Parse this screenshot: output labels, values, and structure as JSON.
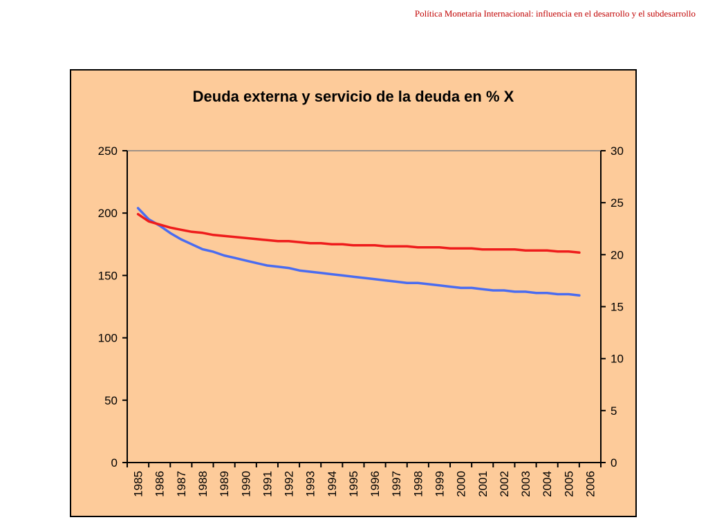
{
  "header": {
    "text": "Política Monetaria Internacional: influencia en el desarrollo y el subdesarrollo"
  },
  "colors": {
    "panel_background": "#fdcb9a",
    "series_1": "#4a6cf0",
    "series_2": "#ee1c1c",
    "top_gridline": "#808080"
  },
  "chart_data": {
    "type": "line",
    "title": "Deuda externa y servicio de la deuda en % X",
    "xlabel": "",
    "ylabel": "",
    "y2label": "",
    "categories": [
      "1985",
      "1986",
      "1987",
      "1988",
      "1989",
      "1990",
      "1991",
      "1992",
      "1993",
      "1994",
      "1995",
      "1996",
      "1997",
      "1998",
      "1999",
      "2000",
      "2001",
      "2002",
      "2003",
      "2004",
      "2005",
      "2006"
    ],
    "ylim": [
      0,
      250
    ],
    "yticks": [
      0,
      50,
      100,
      150,
      200,
      250
    ],
    "y2lim": [
      0,
      30
    ],
    "y2ticks": [
      0,
      5,
      10,
      15,
      20,
      25,
      30
    ],
    "grid": false,
    "legend": "none",
    "series": [
      {
        "axis": "left",
        "color": "#4a6cf0",
        "x": [
          1985.5,
          1986.0,
          1986.5,
          1987.0,
          1987.5,
          1988.0,
          1988.5,
          1989.0,
          1989.5,
          1990.0,
          1990.5,
          1991.0,
          1991.5,
          1992.0,
          1992.5,
          1993.0,
          1993.5,
          1994.0,
          1994.5,
          1995.0,
          1995.5,
          1996.0,
          1996.5,
          1997.0,
          1997.5,
          1998.0,
          1998.5,
          1999.0,
          1999.5,
          2000.0,
          2000.5,
          2001.0,
          2001.5,
          2002.0,
          2002.5,
          2003.0,
          2003.5,
          2004.0,
          2004.5,
          2005.0,
          2005.5,
          2006.0
        ],
        "values": [
          204,
          195,
          190,
          184,
          179,
          175,
          171,
          169,
          166,
          164,
          162,
          160,
          158,
          157,
          156,
          154,
          153,
          152,
          151,
          150,
          149,
          148,
          147,
          146,
          145,
          144,
          144,
          143,
          142,
          141,
          140,
          140,
          139,
          138,
          138,
          137,
          137,
          136,
          136,
          135,
          135,
          134
        ]
      },
      {
        "axis": "right",
        "color": "#ee1c1c",
        "x": [
          1985.5,
          1986.0,
          1986.5,
          1987.0,
          1987.5,
          1988.0,
          1988.5,
          1989.0,
          1989.5,
          1990.0,
          1990.5,
          1991.0,
          1991.5,
          1992.0,
          1992.5,
          1993.0,
          1993.5,
          1994.0,
          1994.5,
          1995.0,
          1995.5,
          1996.0,
          1996.5,
          1997.0,
          1997.5,
          1998.0,
          1998.5,
          1999.0,
          1999.5,
          2000.0,
          2000.5,
          2001.0,
          2001.5,
          2002.0,
          2002.5,
          2003.0,
          2003.5,
          2004.0,
          2004.5,
          2005.0,
          2005.5,
          2006.0
        ],
        "values": [
          23.9,
          23.2,
          22.9,
          22.6,
          22.4,
          22.2,
          22.1,
          21.9,
          21.8,
          21.7,
          21.6,
          21.5,
          21.4,
          21.3,
          21.3,
          21.2,
          21.1,
          21.1,
          21.0,
          21.0,
          20.9,
          20.9,
          20.9,
          20.8,
          20.8,
          20.8,
          20.7,
          20.7,
          20.7,
          20.6,
          20.6,
          20.6,
          20.5,
          20.5,
          20.5,
          20.5,
          20.4,
          20.4,
          20.4,
          20.3,
          20.3,
          20.2
        ]
      }
    ]
  }
}
